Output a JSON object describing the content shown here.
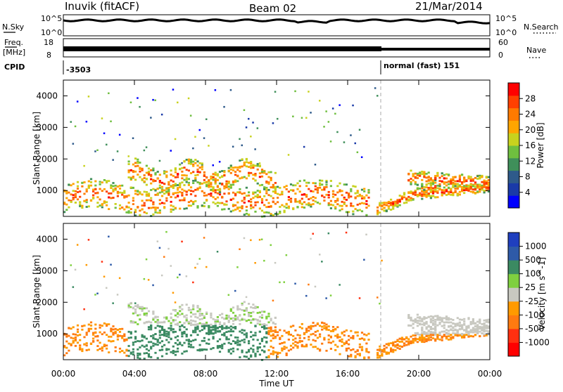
{
  "header": {
    "station": "Inuvik (fitACF)",
    "beam": "Beam 02",
    "date": "21/Mar/2014"
  },
  "top_panels": {
    "nsky_label": "N.Sky",
    "nsky_ticks": [
      "10^5",
      "10^0"
    ],
    "nsearch_label": "N.Search",
    "nsearch_ticks": [
      "10^5",
      "10^0"
    ],
    "freq_label": "Freq.",
    "freq_unit": "[MHz]",
    "freq_ticks": [
      "18",
      "8"
    ],
    "nave_label": "Nave",
    "nave_ticks": [
      "60",
      "0"
    ],
    "cpid_label": "CPID",
    "cpid_value": "-3503",
    "mode_label": "normal (fast) 151"
  },
  "chart_data": [
    {
      "type": "heatmap",
      "name": "power",
      "ylabel": "Slant Range [km]",
      "yticks": [
        1000,
        2000,
        3000,
        4000
      ],
      "ylim": [
        180,
        4500
      ],
      "xlim": [
        0,
        24
      ],
      "colorbar": {
        "label": "Power [dB]",
        "ticks": [
          4,
          8,
          12,
          16,
          20,
          24,
          28
        ],
        "range": [
          0,
          32
        ],
        "colors": [
          "#0000ff",
          "#1a3aa8",
          "#2e5a8a",
          "#3f8f5a",
          "#6fbf3f",
          "#c8d21e",
          "#ffa500",
          "#ff7a00",
          "#ff4000",
          "#ff0000"
        ]
      }
    },
    {
      "type": "heatmap",
      "name": "velocity",
      "xlabel": "Time UT",
      "ylabel": "Slant Range [km]",
      "yticks": [
        1000,
        2000,
        3000,
        4000
      ],
      "ylim": [
        180,
        4500
      ],
      "xlim": [
        0,
        24
      ],
      "colorbar": {
        "label": "Velocity [m s^-1]",
        "ticks": [
          "1000",
          "500",
          "100",
          "25",
          "-25",
          "-100",
          "-500",
          "-1000"
        ],
        "colors": [
          "#1f3fbf",
          "#2e5aa8",
          "#3b8a62",
          "#7fd03f",
          "#c8c8c0",
          "#ff9a00",
          "#ff7a10",
          "#ff3010",
          "#ff0000"
        ]
      }
    }
  ],
  "time_axis": {
    "ticks": [
      "00:00",
      "04:00",
      "08:00",
      "12:00",
      "16:00",
      "20:00",
      "00:00"
    ],
    "label": "Time UT"
  }
}
